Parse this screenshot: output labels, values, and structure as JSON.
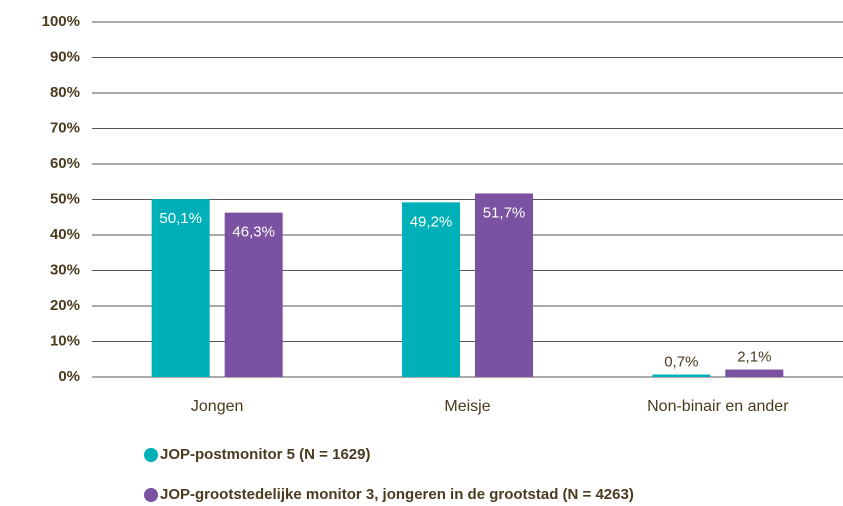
{
  "chart_data": {
    "type": "bar",
    "categories": [
      "Jongen",
      "Meisje",
      "Non-binair en ander"
    ],
    "series": [
      {
        "name": "JOP-postmonitor 5 (N = 1629)",
        "color": "#00b0b9",
        "values": [
          50.1,
          49.2,
          0.7
        ],
        "value_labels": [
          "50,1%",
          "49,2%",
          "0,7%"
        ]
      },
      {
        "name": "JOP-grootstedelijke monitor 3, jongeren in de grootstad (N = 4263)",
        "color": "#7b52a1",
        "values": [
          46.3,
          51.7,
          2.1
        ],
        "value_labels": [
          "46,3%",
          "51,7%",
          "2,1%"
        ]
      }
    ],
    "ylim": [
      0,
      100
    ],
    "yticks": [
      {
        "value": 0,
        "label": "0%"
      },
      {
        "value": 10,
        "label": "10%"
      },
      {
        "value": 20,
        "label": "20%"
      },
      {
        "value": 30,
        "label": "30%"
      },
      {
        "value": 40,
        "label": "40%"
      },
      {
        "value": 50,
        "label": "50%"
      },
      {
        "value": 60,
        "label": "60%"
      },
      {
        "value": 70,
        "label": "70%"
      },
      {
        "value": 80,
        "label": "80%"
      },
      {
        "value": 90,
        "label": "90%"
      },
      {
        "value": 100,
        "label": "100%"
      }
    ],
    "grid": true,
    "legend": "bottom"
  }
}
